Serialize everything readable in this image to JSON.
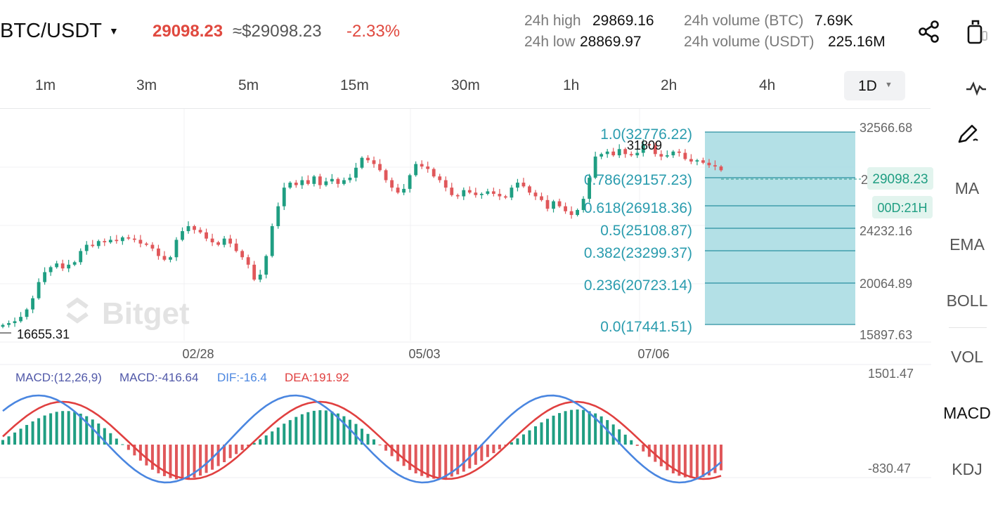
{
  "header": {
    "pair": "BTC/USDT",
    "last_price": "29098.23",
    "approx_usd": "≈$29098.23",
    "change_pct": "-2.33%",
    "high_label": "24h high",
    "high_value": "29869.16",
    "low_label": "24h low",
    "low_value": "28869.97",
    "vol_btc_label": "24h volume (BTC)",
    "vol_btc_value": "7.69K",
    "vol_usdt_label": "24h volume (USDT)",
    "vol_usdt_value": "225.16M",
    "icons": [
      "share-icon",
      "copy-icon"
    ]
  },
  "timeframes": [
    "1m",
    "3m",
    "5m",
    "15m",
    "30m",
    "1h",
    "2h",
    "4h"
  ],
  "active_timeframe": "1D",
  "side_menu": [
    "MA",
    "EMA",
    "BOLL",
    "VOL",
    "MACD",
    "KDJ"
  ],
  "side_icons": [
    "pulse-icon",
    "draw-icon"
  ],
  "colors": {
    "up": "#1f9e82",
    "down": "#e0575a",
    "fib": "#2a9cae",
    "fib_fill": "#a6dbe2",
    "dif": "#4a86e0",
    "dea": "#e04040"
  },
  "chart_data": {
    "type": "candlestick",
    "watermark": "Bitget",
    "price_axis": {
      "ticks": [
        "32566.68",
        "28399.42",
        "24232.16",
        "20064.89",
        "15897.63"
      ],
      "range": [
        15897.63,
        32566.68
      ]
    },
    "date_ticks": [
      "02/28",
      "05/03",
      "07/06"
    ],
    "low_marker": "16655.31",
    "high_marker": "31809",
    "last_price_tag": "29098.23",
    "countdown_tag": "00D:21H",
    "fibonacci": [
      {
        "level": "1.0",
        "price": 32776.22
      },
      {
        "level": "0.786",
        "price": 29157.23
      },
      {
        "level": "0.618",
        "price": 26918.36
      },
      {
        "level": "0.5",
        "price": 25108.87
      },
      {
        "level": "0.382",
        "price": 23299.37
      },
      {
        "level": "0.236",
        "price": 20723.14
      },
      {
        "level": "0.0",
        "price": 17441.51
      }
    ],
    "close_series_approx": [
      16655,
      16800,
      16950,
      17300,
      17900,
      18800,
      20100,
      20900,
      21300,
      21600,
      21200,
      21500,
      21700,
      22600,
      23100,
      23000,
      23400,
      23300,
      23500,
      23400,
      23700,
      23600,
      23500,
      23200,
      23100,
      22800,
      22200,
      21900,
      22100,
      23500,
      24200,
      24600,
      24300,
      24100,
      23600,
      23300,
      23100,
      23600,
      23200,
      22600,
      22100,
      21500,
      20300,
      20700,
      22200,
      24600,
      26200,
      27700,
      28100,
      27900,
      28300,
      28000,
      28600,
      27900,
      28200,
      28400,
      28000,
      28300,
      28500,
      29300,
      30100,
      29900,
      29600,
      29100,
      28300,
      27700,
      27300,
      27600,
      28700,
      29600,
      29400,
      29200,
      28600,
      28300,
      27700,
      27100,
      27000,
      27500,
      27300,
      27100,
      27200,
      27400,
      27200,
      27000,
      26900,
      27700,
      28100,
      27800,
      27300,
      27000,
      26700,
      26000,
      26600,
      26200,
      25800,
      25500,
      25900,
      26800,
      28500,
      30200,
      30400,
      30600,
      30300,
      30800,
      30400,
      30300,
      30500,
      31200,
      31100,
      30400,
      30200,
      30300,
      30600,
      30500,
      30000,
      29800,
      29900,
      29700,
      29500,
      29400,
      29098
    ],
    "macd": {
      "title": "MACD:(12,26,9)",
      "macd_label": "MACD:-416.64",
      "dif_label": "DIF:-16.4",
      "dea_label": "DEA:191.92",
      "axis_top": "1501.47",
      "axis_bottom": "-830.47",
      "range": [
        -830.47,
        1501.47
      ]
    }
  }
}
